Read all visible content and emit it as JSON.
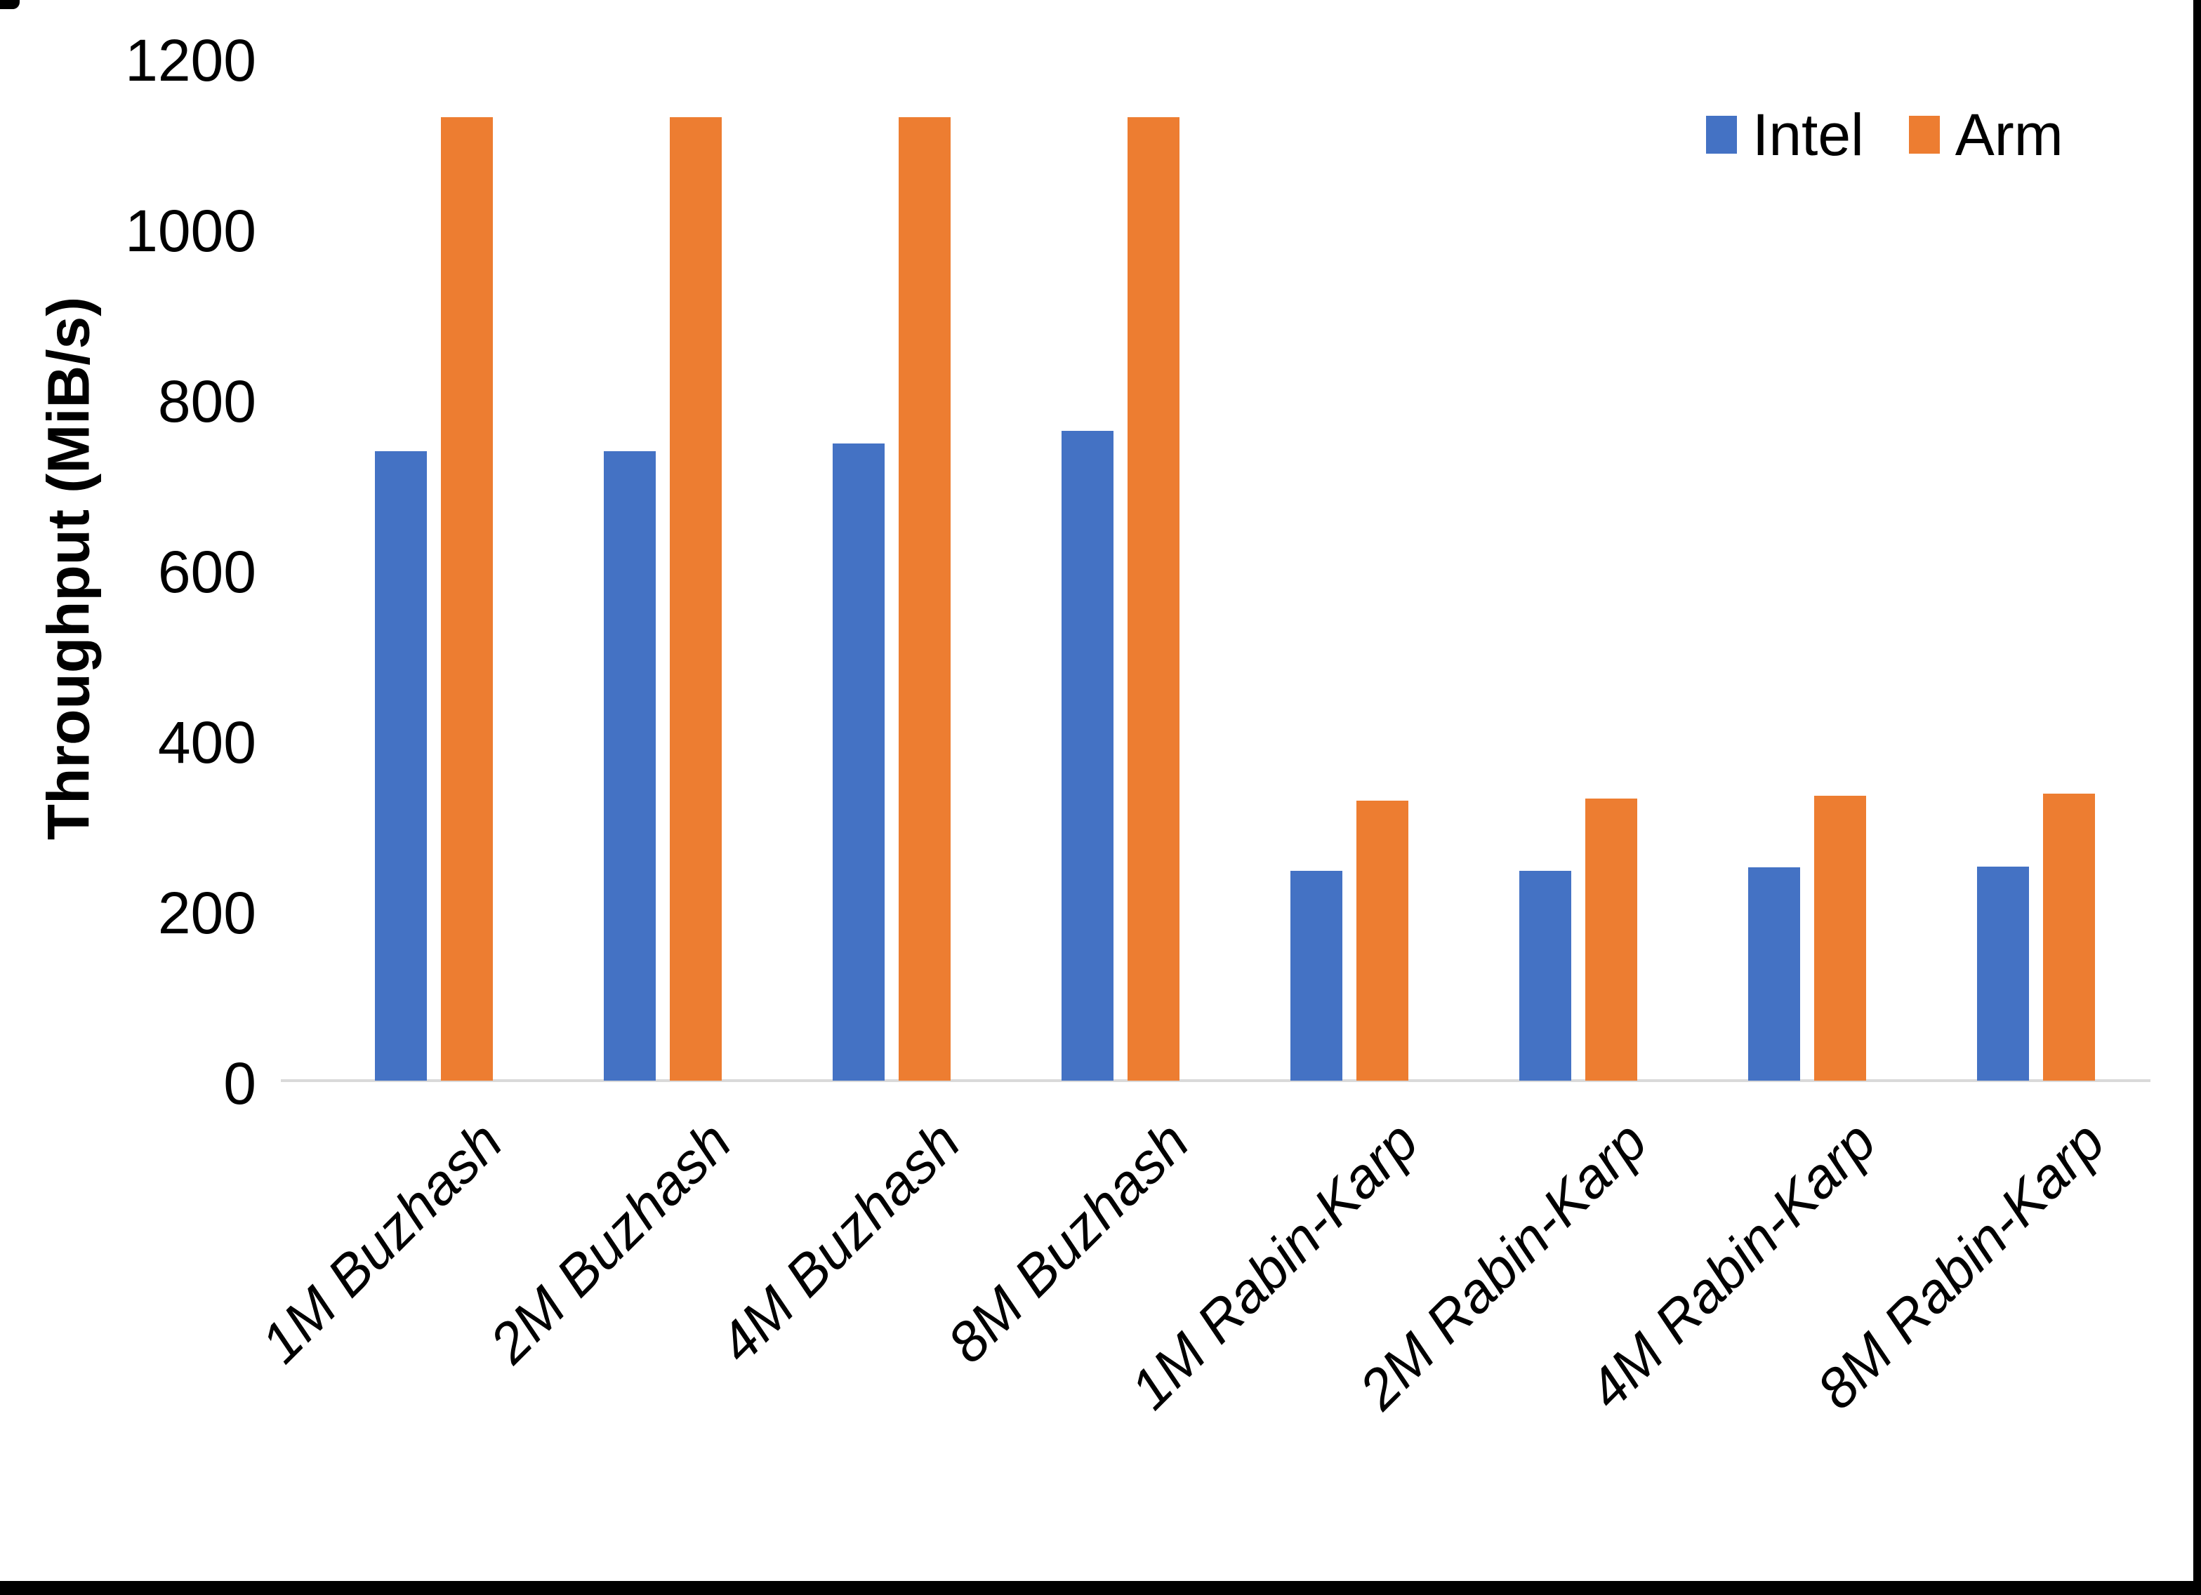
{
  "page": {
    "background": "#ffffff",
    "frame_color": "#000000"
  },
  "chart_data": {
    "type": "bar",
    "title": "",
    "xlabel": "",
    "ylabel": "Throughput (MiB/s)",
    "ylim": [
      0,
      1200
    ],
    "yticks": [
      "0",
      "200",
      "400",
      "600",
      "800",
      "1000",
      "1200"
    ],
    "grid": false,
    "legend_position": "top-right",
    "axis_line_color": "#D9D9D9",
    "text_color": "#000000",
    "categories": [
      "1M Buzhash",
      "2M Buzhash",
      "4M Buzhash",
      "8M Buzhash",
      "1M Rabin-Karp",
      "2M Rabin-Karp",
      "4M Rabin-Karp",
      "8M Rabin-Karp"
    ],
    "series": [
      {
        "name": "Intel",
        "color": "#4472C4",
        "values": [
          738,
          738,
          747,
          762,
          246,
          246,
          250,
          251
        ]
      },
      {
        "name": "Arm",
        "color": "#ED7D31",
        "values": [
          1130,
          1130,
          1130,
          1130,
          328,
          331,
          334,
          337
        ]
      }
    ]
  }
}
